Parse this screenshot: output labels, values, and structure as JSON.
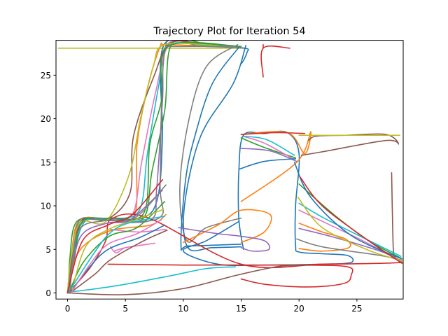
{
  "chart_data": {
    "type": "line",
    "title": "Trajectory Plot for Iteration 54",
    "xlabel": "",
    "ylabel": "",
    "xlim": [
      -1,
      29
    ],
    "ylim": [
      -0.7,
      29
    ],
    "xticks": [
      0,
      5,
      10,
      15,
      20,
      25
    ],
    "yticks": [
      0,
      5,
      10,
      15,
      20,
      25
    ],
    "grid": false,
    "palette": [
      "#1f77b4",
      "#ff7f0e",
      "#2ca02c",
      "#d62728",
      "#9467bd",
      "#8c564b",
      "#e377c2",
      "#7f7f7f",
      "#bcbd22",
      "#17becf"
    ],
    "series": [
      {
        "color": "#bcbd22",
        "x": [
          -0.8,
          3,
          8,
          14,
          15.2
        ],
        "y": [
          28.1,
          28.1,
          28.1,
          28.1,
          28.1
        ]
      },
      {
        "color": "#d62728",
        "x": [
          16.9,
          16.9,
          19.2
        ],
        "y": [
          24.8,
          28.1,
          28.1
        ]
      },
      {
        "color": "#d62728",
        "x": [
          16.9,
          16.9
        ],
        "y": [
          28.1,
          28.5
        ]
      },
      {
        "color": "#1f77b4",
        "x": [
          0,
          0.5,
          1.2,
          3.3,
          6.5,
          7.8,
          8.2,
          8.3,
          12,
          15.3,
          15.5,
          15.2,
          15
        ],
        "y": [
          0,
          4,
          8.3,
          8.5,
          8.6,
          11,
          18,
          28.4,
          28.3,
          28.1,
          27.6,
          26.7,
          26.3
        ]
      },
      {
        "color": "#ff7f0e",
        "x": [
          0,
          0.3,
          1,
          3.5,
          5.8,
          6,
          7,
          8,
          8.4,
          11,
          15
        ],
        "y": [
          0,
          4,
          8.3,
          8.5,
          9,
          17,
          24,
          28.3,
          28.5,
          28.4,
          28.2
        ]
      },
      {
        "color": "#2ca02c",
        "x": [
          0.1,
          0.2,
          0.8,
          3.2,
          6.5,
          7.3,
          8.4,
          9,
          12,
          14.8
        ],
        "y": [
          0,
          4,
          8.2,
          8.4,
          8.5,
          14,
          21,
          28.6,
          28.6,
          28.2
        ]
      },
      {
        "color": "#9467bd",
        "x": [
          0,
          0.4,
          1.3,
          3.6,
          7.2,
          7.7,
          8.2,
          8.6,
          12,
          15
        ],
        "y": [
          0,
          4,
          8.1,
          8.3,
          8.4,
          12,
          22,
          28.5,
          28.4,
          28.2
        ]
      },
      {
        "color": "#e377c2",
        "x": [
          0,
          0.3,
          1.1,
          3.4,
          5.6,
          6.4,
          7.6,
          8.8,
          11,
          14
        ],
        "y": [
          0,
          4,
          8.2,
          8.4,
          9,
          15,
          23,
          28.6,
          28.5,
          28.3
        ]
      },
      {
        "color": "#17becf",
        "x": [
          0,
          0.5,
          1.5,
          3.8,
          6.2,
          6.9,
          7.9,
          8.6,
          12,
          14.5
        ],
        "y": [
          0,
          4,
          8.2,
          8.5,
          9.5,
          16,
          24,
          28.4,
          28.4,
          28.2
        ]
      },
      {
        "color": "#8c564b",
        "x": [
          0,
          0.4,
          1.2,
          3.5,
          5.4,
          5.7,
          7.5,
          8.9,
          12
        ],
        "y": [
          0,
          4,
          8.3,
          8.5,
          11.5,
          18,
          25,
          28.7,
          28.5
        ]
      },
      {
        "color": "#7f7f7f",
        "x": [
          0,
          0.5,
          1,
          3.1,
          7.9,
          8,
          8.5,
          11
        ],
        "y": [
          0,
          4,
          8.3,
          8.4,
          8.6,
          13,
          28.5,
          28.4
        ]
      },
      {
        "color": "#bcbd22",
        "x": [
          0,
          0.3,
          1.1,
          3.3,
          5.3,
          6.3,
          7.4,
          8.4,
          13
        ],
        "y": [
          0,
          4,
          8.1,
          8.2,
          13.5,
          20,
          26,
          28.5,
          28.4
        ]
      },
      {
        "color": "#2ca02c",
        "x": [
          0,
          0.6,
          1.3,
          3.7,
          6.6,
          7.1,
          8.1,
          8.7,
          15
        ],
        "y": [
          0,
          4,
          8.2,
          8.6,
          9.2,
          17,
          22,
          28.3,
          28.3
        ]
      },
      {
        "color": "#7f7f7f",
        "x": [
          8.5,
          13,
          15
        ],
        "y": [
          28.3,
          28.3,
          28.2
        ]
      },
      {
        "color": "#7f7f7f",
        "x": [
          14.7,
          12,
          10.5,
          9.7,
          10.3,
          12,
          15
        ],
        "y": [
          28.5,
          26,
          20,
          12,
          6,
          7.5,
          8.6
        ]
      },
      {
        "color": "#1f77b4",
        "x": [
          14.8,
          12.5,
          11,
          10.2,
          9.8,
          10.5,
          15
        ],
        "y": [
          28.2,
          24,
          18,
          13,
          5.5,
          5.4,
          5.6
        ]
      },
      {
        "color": "#1f77b4",
        "x": [
          15.4,
          14.3,
          11.5,
          10.1,
          10.4,
          12.5,
          15
        ],
        "y": [
          28.4,
          24,
          18,
          10,
          5.2,
          5.2,
          5.3
        ]
      },
      {
        "color": "#1f77b4",
        "x": [
          15.2,
          14.8,
          14.8,
          15.2,
          17,
          19,
          20,
          19.7,
          19.7,
          20,
          22,
          24.2,
          24.5,
          22,
          17,
          13,
          10,
          12,
          14.8
        ],
        "y": [
          5,
          8.5,
          14,
          18.1,
          18.3,
          18.4,
          16,
          10,
          5.5,
          4.7,
          4.5,
          4.3,
          3.5,
          3.3,
          3.2,
          3.3,
          4.8,
          6,
          8.2
        ]
      },
      {
        "color": "#ff7f0e",
        "x": [
          15,
          19,
          20.5,
          21,
          19.8,
          15
        ],
        "y": [
          18.2,
          18.4,
          16,
          18.5,
          15,
          10.5
        ]
      },
      {
        "color": "#ff7f0e",
        "x": [
          10,
          13,
          15,
          17.5,
          17,
          15
        ],
        "y": [
          5.8,
          7.8,
          9.5,
          9,
          7,
          5.8
        ]
      },
      {
        "color": "#ff7f0e",
        "x": [
          20,
          22,
          24,
          24.3,
          22,
          20
        ],
        "y": [
          8,
          7,
          6.2,
          5.2,
          4.8,
          5.1
        ]
      },
      {
        "color": "#8c564b",
        "x": [
          20.2,
          22,
          27.5,
          28.6,
          27.5,
          24,
          21.5,
          20.8
        ],
        "y": [
          15.8,
          16.2,
          17.5,
          17.1,
          18.2,
          18.1,
          18,
          17.5
        ]
      },
      {
        "color": "#bcbd22",
        "x": [
          20,
          24,
          28.7
        ],
        "y": [
          18.1,
          18.1,
          18.1
        ]
      },
      {
        "color": "#8c564b",
        "x": [
          28,
          28.1,
          28.2,
          28.6,
          28.9
        ],
        "y": [
          13.8,
          7,
          4.4,
          3.8,
          3.5
        ]
      },
      {
        "color": "#d62728",
        "x": [
          3.5,
          10,
          20,
          24.2,
          24.5,
          24.1,
          22.5,
          20,
          17,
          15
        ],
        "y": [
          3.3,
          3.2,
          3.2,
          3,
          2,
          1.2,
          0.8,
          0.7,
          1,
          1.6
        ]
      },
      {
        "color": "#d62728",
        "x": [
          0.2,
          2,
          3.3,
          3.8,
          7,
          15,
          22,
          27,
          28.9
        ],
        "y": [
          0.2,
          3,
          6,
          8.5,
          8.6,
          3.3,
          3.3,
          3.4,
          3.5
        ]
      },
      {
        "color": "#8c564b",
        "x": [
          0,
          5,
          10,
          14.5,
          18,
          20
        ],
        "y": [
          0,
          -0.2,
          0.5,
          2,
          3,
          3.2
        ]
      },
      {
        "color": "#17becf",
        "x": [
          0.1,
          2,
          5,
          9,
          12,
          14.5
        ],
        "y": [
          0.1,
          0.4,
          1,
          2,
          2.8,
          3
        ]
      },
      {
        "color": "#e377c2",
        "x": [
          3.7,
          4.2,
          5,
          6.5,
          7.5,
          5,
          4
        ],
        "y": [
          5.3,
          4.6,
          5.2,
          5.5,
          5.7,
          5.2,
          4.8
        ]
      },
      {
        "color": "#e377c2",
        "x": [
          3.7,
          5,
          6.2,
          7.2,
          8.5
        ],
        "y": [
          7.3,
          7.1,
          7,
          7.1,
          7.3
        ]
      },
      {
        "color": "#9467bd",
        "x": [
          9.6,
          11,
          13,
          15,
          17,
          17.4,
          16,
          15
        ],
        "y": [
          7.5,
          7.2,
          6.8,
          6.5,
          6,
          5,
          4.8,
          5.2
        ]
      },
      {
        "color": "#e377c2",
        "x": [
          20,
          23,
          25.5,
          28.9
        ],
        "y": [
          9.5,
          7.6,
          6,
          3.6
        ]
      },
      {
        "color": "#2ca02c",
        "x": [
          20,
          23,
          26,
          28.8
        ],
        "y": [
          12.5,
          9,
          6,
          4
        ]
      },
      {
        "color": "#9467bd",
        "x": [
          20,
          23,
          27,
          28.8
        ],
        "y": [
          7.4,
          6.4,
          4.8,
          3.7
        ]
      },
      {
        "color": "#17becf",
        "x": [
          20,
          22,
          25,
          28.8
        ],
        "y": [
          10.3,
          8.7,
          6.7,
          4.2
        ]
      },
      {
        "color": "#7f7f7f",
        "x": [
          19.8,
          22,
          27,
          28.8
        ],
        "y": [
          6.2,
          5.3,
          4.3,
          3.8
        ]
      },
      {
        "color": "#bcbd22",
        "x": [
          19.9,
          22,
          26,
          28.9
        ],
        "y": [
          11,
          7.5,
          4.9,
          3.7
        ]
      },
      {
        "color": "#1f77b4",
        "x": [
          19.6,
          21,
          24.5,
          28.9
        ],
        "y": [
          15,
          11,
          6.6,
          3.9
        ]
      },
      {
        "color": "#d62728",
        "x": [
          20.1,
          22,
          26,
          28.9
        ],
        "y": [
          13.3,
          10,
          6,
          3.4
        ]
      },
      {
        "color": "#2ca02c",
        "x": [
          15,
          17,
          19.7
        ],
        "y": [
          17.8,
          16.7,
          15.5
        ]
      },
      {
        "color": "#9467bd",
        "x": [
          15,
          17.5,
          19.8
        ],
        "y": [
          16.6,
          16.3,
          15.1
        ]
      },
      {
        "color": "#e377c2",
        "x": [
          15.1,
          17,
          19.6
        ],
        "y": [
          18,
          17.2,
          15.3
        ]
      },
      {
        "color": "#1f77b4",
        "x": [
          14.8,
          17,
          19.7
        ],
        "y": [
          14.2,
          15.1,
          15.4
        ]
      },
      {
        "color": "#d62728",
        "x": [
          15,
          18,
          20.5
        ],
        "y": [
          18.2,
          18.4,
          18.3
        ]
      },
      {
        "color": "#17becf",
        "x": [
          15.1,
          17.2,
          19.6
        ],
        "y": [
          18,
          17.6,
          15.8
        ]
      },
      {
        "color": "#ff7f0e",
        "x": [
          0.1,
          1,
          3.6,
          7.2,
          8.5
        ],
        "y": [
          0.4,
          4.8,
          7.1,
          7.8,
          9
        ]
      },
      {
        "color": "#2ca02c",
        "x": [
          0.2,
          1.4,
          3.6,
          6,
          8.4
        ],
        "y": [
          0.3,
          3.6,
          6.5,
          7.5,
          10.5
        ]
      },
      {
        "color": "#1f77b4",
        "x": [
          0.3,
          1.8,
          3.5,
          6.3,
          8.4
        ],
        "y": [
          0.2,
          2.8,
          5,
          6.4,
          7.8
        ]
      },
      {
        "color": "#8c564b",
        "x": [
          0.2,
          2.4,
          3.7,
          6.6,
          8.6
        ],
        "y": [
          0,
          2.2,
          3.8,
          6,
          7.2
        ]
      },
      {
        "color": "#bcbd22",
        "x": [
          0.4,
          1.6,
          3.7,
          5.7,
          8.3
        ],
        "y": [
          0.4,
          5.4,
          7.4,
          8.3,
          9.6
        ]
      },
      {
        "color": "#9467bd",
        "x": [
          0.1,
          1.1,
          3.4,
          5.4,
          8.2
        ],
        "y": [
          0.5,
          6.4,
          8,
          8.4,
          11.8
        ]
      },
      {
        "color": "#17becf",
        "x": [
          0.2,
          2.2,
          3.6,
          5.2,
          8.4
        ],
        "y": [
          0.3,
          4.4,
          6.8,
          8,
          8.8
        ]
      },
      {
        "color": "#e377c2",
        "x": [
          0.3,
          2,
          3.5,
          6,
          8.1
        ],
        "y": [
          0,
          3.4,
          5.6,
          6.8,
          8.4
        ]
      },
      {
        "color": "#7f7f7f",
        "x": [
          0.2,
          0.9,
          3.2,
          5.8,
          8.5
        ],
        "y": [
          0.2,
          7,
          8.3,
          8.6,
          12.4
        ]
      },
      {
        "color": "#d62728",
        "x": [
          0,
          1.3,
          3.5,
          5.6,
          8.2
        ],
        "y": [
          0.1,
          6,
          7.8,
          9,
          13
        ]
      }
    ]
  }
}
